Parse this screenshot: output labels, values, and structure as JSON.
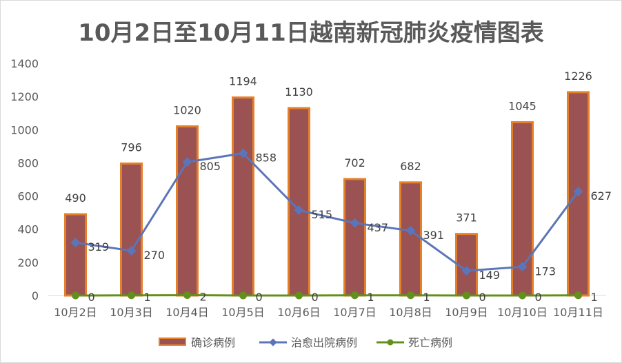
{
  "chart_data": {
    "type": "bar",
    "title": "10月2日至10月11日越南新冠肺炎疫情图表",
    "categories": [
      "10月2日",
      "10月3日",
      "10月4日",
      "10月5日",
      "10月6日",
      "10月7日",
      "10月8日",
      "10月9日",
      "10月10日",
      "10月11日"
    ],
    "ylim": [
      0,
      1400
    ],
    "yticks": [
      "0",
      "200",
      "400",
      "600",
      "800",
      "1000",
      "1200",
      "1400"
    ],
    "grid": false,
    "legend_position": "bottom",
    "series": [
      {
        "name": "确诊病例",
        "kind": "bar",
        "color": "#9a5253",
        "edge": "#e5802a",
        "values": [
          490,
          796,
          1020,
          1194,
          1130,
          702,
          682,
          371,
          1045,
          1226
        ]
      },
      {
        "name": "治愈出院病例",
        "kind": "line",
        "color": "#5b75b8",
        "values": [
          319,
          270,
          805,
          858,
          515,
          437,
          391,
          149,
          173,
          627
        ]
      },
      {
        "name": "死亡病例",
        "kind": "line",
        "color": "#63901c",
        "values": [
          0,
          1,
          2,
          0,
          0,
          1,
          1,
          0,
          0,
          1
        ]
      }
    ]
  }
}
